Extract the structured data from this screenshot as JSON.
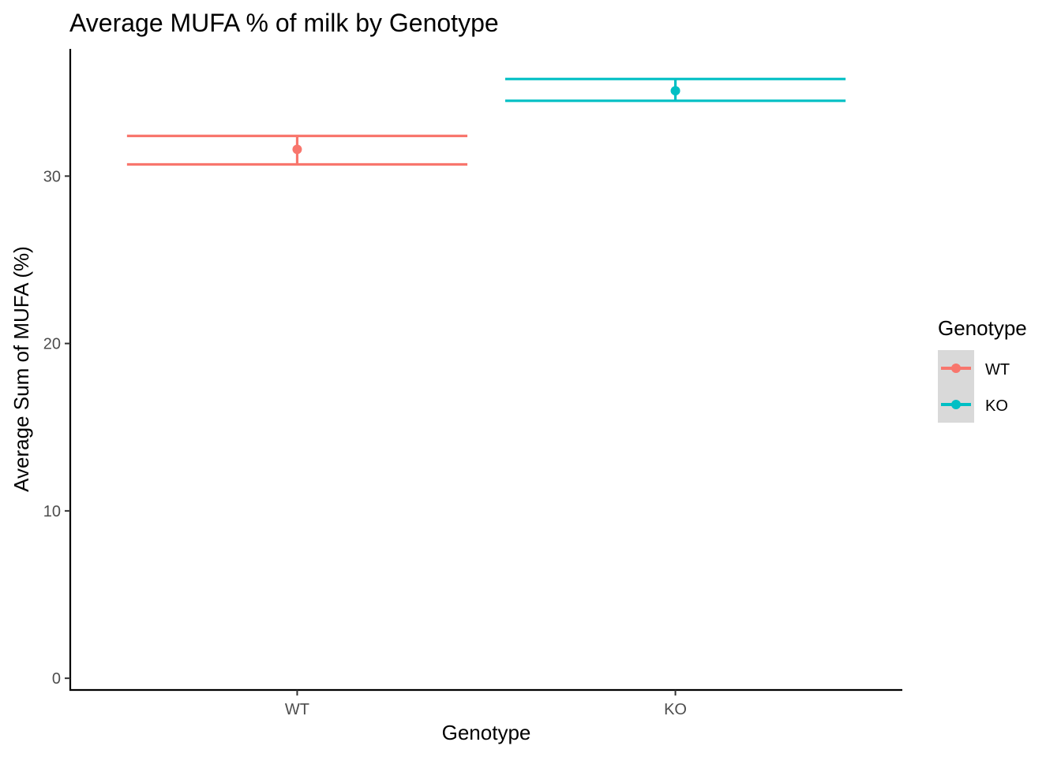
{
  "chart_data": {
    "type": "scatter",
    "title": "Average MUFA % of milk by Genotype",
    "xlabel": "Genotype",
    "ylabel": "Average Sum of MUFA (%)",
    "categories": [
      "WT",
      "KO"
    ],
    "series": [
      {
        "name": "WT",
        "color": "#F8766D",
        "mean": 31.6,
        "lower": 30.7,
        "upper": 32.4
      },
      {
        "name": "KO",
        "color": "#00BFC4",
        "mean": 35.1,
        "lower": 34.5,
        "upper": 35.8
      }
    ],
    "yticks": [
      0,
      10,
      20,
      30
    ],
    "ylim": [
      -0.7,
      37.6
    ],
    "grid": false,
    "legend": {
      "title": "Genotype",
      "placement": "right",
      "items": [
        "WT",
        "KO"
      ]
    }
  }
}
